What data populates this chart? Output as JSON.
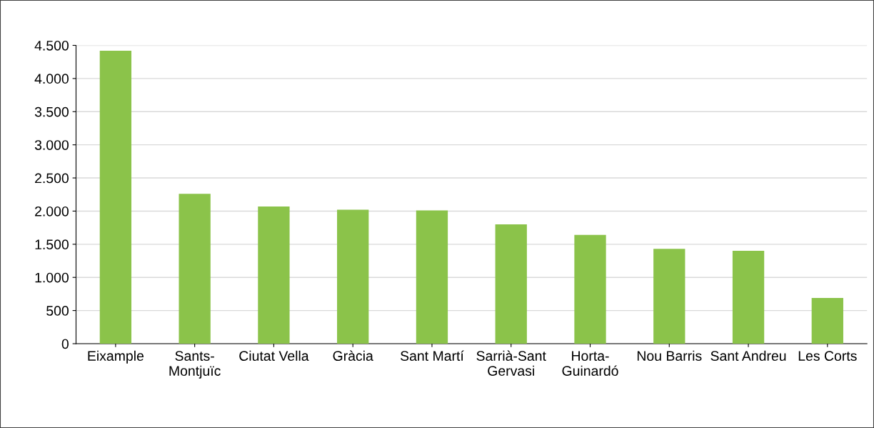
{
  "chart_data": {
    "type": "bar",
    "categories": [
      "Eixample",
      "Sants-\nMontjuïc",
      "Ciutat Vella",
      "Gràcia",
      "Sant Martí",
      "Sarrià-Sant\nGervasi",
      "Horta-\nGuinardó",
      "Nou Barris",
      "Sant Andreu",
      "Les Corts"
    ],
    "values": [
      4420,
      2260,
      2070,
      2020,
      2010,
      1800,
      1640,
      1430,
      1400,
      690
    ],
    "color": "#8bc34a",
    "ylim": [
      0,
      4500
    ],
    "yticks": [
      0,
      {
        "value": 500,
        "label": "500"
      },
      {
        "value": 1000,
        "label": "1.000"
      },
      {
        "value": 1500,
        "label": "1.500"
      },
      {
        "value": 2000,
        "label": "2.000"
      },
      {
        "value": 2500,
        "label": "2.500"
      },
      {
        "value": 3000,
        "label": "3.000"
      },
      {
        "value": 3500,
        "label": "3.500"
      },
      {
        "value": 4000,
        "label": "4.000"
      },
      {
        "value": 4500,
        "label": "4.500"
      }
    ],
    "grid": "y"
  }
}
